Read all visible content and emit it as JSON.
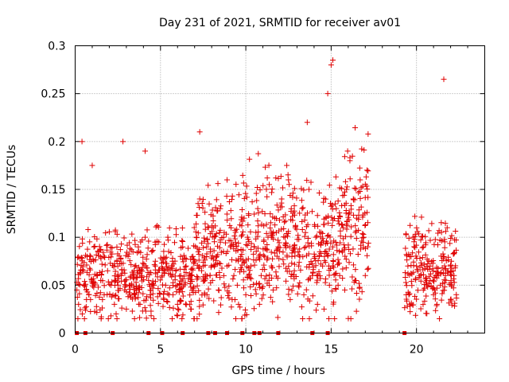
{
  "chart_data": {
    "type": "scatter",
    "title": "Day 231 of 2021, SRMTID for receiver av01",
    "xlabel": "GPS time / hours",
    "ylabel": "SRMTID / TECUs",
    "xlim": [
      0,
      24
    ],
    "ylim": [
      0,
      0.3
    ],
    "x_ticks": [
      0,
      5,
      10,
      15,
      20
    ],
    "x_tick_labels": [
      "0",
      "5",
      "10",
      "15",
      "20"
    ],
    "y_ticks": [
      0,
      0.05,
      0.1,
      0.15,
      0.2,
      0.25,
      0.3
    ],
    "y_tick_labels": [
      "0",
      "0.05",
      "0.1",
      "0.15",
      "0.2",
      "0.25",
      "0.3"
    ],
    "grid": true,
    "marker": "plus",
    "series": [
      {
        "name": "SRMTID",
        "color": "#e00000",
        "gaps_hours": [
          [
            17.2,
            19.3
          ]
        ],
        "x": [
          0.1,
          0.3,
          0.5,
          0.7,
          0.9,
          1.1,
          1.3,
          1.5,
          1.7,
          1.9,
          2.1,
          2.3,
          2.5,
          2.7,
          2.9,
          3.1,
          3.3,
          3.5,
          3.7,
          3.9,
          4.1,
          4.3,
          4.5,
          4.7,
          4.9,
          5.1,
          5.3,
          5.5,
          5.7,
          5.9,
          6.1,
          6.3,
          6.5,
          6.7,
          6.9,
          7.1,
          7.3,
          7.5,
          7.7,
          7.9,
          8.1,
          8.3,
          8.5,
          8.7,
          8.9,
          9.1,
          9.3,
          9.5,
          9.7,
          9.9,
          10.1,
          10.3,
          10.5,
          10.7,
          10.9,
          11.1,
          11.3,
          11.5,
          11.7,
          11.9,
          12.1,
          12.3,
          12.5,
          12.7,
          12.9,
          13.1,
          13.3,
          13.5,
          13.7,
          13.9,
          14.1,
          14.3,
          14.5,
          14.7,
          14.9,
          15.1,
          15.3,
          15.5,
          15.7,
          15.9,
          16.1,
          16.3,
          16.5,
          16.7,
          16.9,
          17.1,
          19.4,
          19.6,
          19.8,
          20.0,
          20.2,
          20.4,
          20.6,
          20.8,
          21.0,
          21.2,
          21.4,
          21.6,
          21.8,
          22.0,
          22.2,
          0.4,
          1.0,
          2.8,
          4.1,
          7.3,
          12.4,
          13.6,
          14.8,
          15.0,
          15.1,
          21.6,
          0.2,
          0.8,
          1.6,
          2.4,
          3.0,
          3.8,
          4.4,
          5.2,
          6.0,
          6.8,
          7.6,
          8.4,
          9.2,
          10.0,
          10.8,
          11.6,
          12.6,
          13.4,
          14.2,
          15.2,
          15.8,
          16.4,
          17.0,
          19.6,
          20.4,
          21.2,
          22.0
        ],
        "y": [
          0.045,
          0.062,
          0.05,
          0.08,
          0.035,
          0.09,
          0.06,
          0.055,
          0.04,
          0.065,
          0.05,
          0.03,
          0.07,
          0.06,
          0.045,
          0.08,
          0.05,
          0.04,
          0.09,
          0.06,
          0.1,
          0.055,
          0.085,
          0.07,
          0.095,
          0.06,
          0.05,
          0.04,
          0.075,
          0.065,
          0.045,
          0.09,
          0.07,
          0.06,
          0.08,
          0.1,
          0.14,
          0.07,
          0.09,
          0.06,
          0.11,
          0.08,
          0.13,
          0.1,
          0.07,
          0.09,
          0.06,
          0.05,
          0.08,
          0.12,
          0.1,
          0.07,
          0.09,
          0.13,
          0.06,
          0.08,
          0.1,
          0.07,
          0.12,
          0.09,
          0.14,
          0.1,
          0.16,
          0.08,
          0.11,
          0.07,
          0.13,
          0.09,
          0.15,
          0.06,
          0.1,
          0.08,
          0.07,
          0.12,
          0.05,
          0.09,
          0.13,
          0.06,
          0.11,
          0.15,
          0.18,
          0.14,
          0.12,
          0.16,
          0.1,
          0.17,
          0.04,
          0.08,
          0.1,
          0.07,
          0.06,
          0.09,
          0.05,
          0.07,
          0.04,
          0.06,
          0.05,
          0.08,
          0.11,
          0.07,
          0.06,
          0.2,
          0.175,
          0.2,
          0.19,
          0.21,
          0.175,
          0.22,
          0.25,
          0.28,
          0.285,
          0.265,
          0.03,
          0.04,
          0.035,
          0.02,
          0.025,
          0.03,
          0.04,
          0.035,
          0.03,
          0.025,
          0.04,
          0.045,
          0.035,
          0.04,
          0.03,
          0.045,
          0.035,
          0.04,
          0.03,
          0.015,
          0.045,
          0.055,
          0.06,
          0.03,
          0.045,
          0.03,
          0.035
        ],
        "zero_markers_x": [
          0.1,
          0.6,
          2.2,
          4.3,
          5.1,
          6.3,
          7.8,
          8.2,
          8.9,
          9.8,
          10.5,
          10.8,
          11.9,
          13.9,
          14.8,
          19.3
        ]
      }
    ]
  }
}
